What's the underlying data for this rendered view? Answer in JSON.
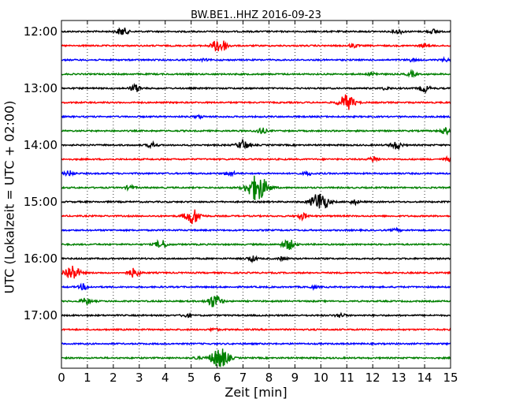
{
  "chart_data": {
    "type": "line",
    "title": "BW.BE1..HHZ 2016-09-23",
    "xlabel": "Zeit  [min]",
    "ylabel": "UTC (Lokalzeit = UTC + 02:00)",
    "xlim": [
      0,
      15
    ],
    "x_ticks": [
      0,
      1,
      2,
      3,
      4,
      5,
      6,
      7,
      8,
      9,
      10,
      11,
      12,
      13,
      14,
      15
    ],
    "y_tick_labels": [
      "12:00",
      "13:00",
      "14:00",
      "15:00",
      "16:00",
      "17:00"
    ],
    "grid": "vertical dotted",
    "colors": [
      "#000000",
      "#ff0000",
      "#0000ff",
      "#008000"
    ],
    "traces": [
      {
        "start": "12:00",
        "color": "#000000",
        "events": [
          [
            2.35,
            0.45
          ],
          [
            13.0,
            0.25
          ],
          [
            14.35,
            0.25
          ]
        ]
      },
      {
        "start": "12:15",
        "color": "#ff0000",
        "events": [
          [
            6.1,
            0.85
          ],
          [
            11.25,
            0.2
          ],
          [
            14.0,
            0.2
          ]
        ]
      },
      {
        "start": "12:30",
        "color": "#0000ff",
        "events": [
          [
            5.5,
            0.1
          ],
          [
            13.5,
            0.15
          ],
          [
            14.8,
            0.15
          ]
        ]
      },
      {
        "start": "12:45",
        "color": "#008000",
        "events": [
          [
            12.0,
            0.2
          ],
          [
            13.5,
            0.3
          ]
        ]
      },
      {
        "start": "13:00",
        "color": "#000000",
        "events": [
          [
            2.85,
            0.4
          ],
          [
            12.5,
            0.15
          ],
          [
            14.0,
            0.4
          ]
        ]
      },
      {
        "start": "13:15",
        "color": "#ff0000",
        "events": [
          [
            11.0,
            0.9
          ]
        ]
      },
      {
        "start": "13:30",
        "color": "#0000ff",
        "events": [
          [
            5.3,
            0.15
          ]
        ]
      },
      {
        "start": "13:45",
        "color": "#008000",
        "events": [
          [
            7.7,
            0.35
          ],
          [
            14.8,
            0.35
          ]
        ]
      },
      {
        "start": "14:00",
        "color": "#000000",
        "events": [
          [
            3.5,
            0.3
          ],
          [
            7.0,
            0.55
          ],
          [
            12.9,
            0.45
          ]
        ]
      },
      {
        "start": "14:15",
        "color": "#ff0000",
        "events": [
          [
            12.05,
            0.3
          ],
          [
            14.9,
            0.2
          ]
        ]
      },
      {
        "start": "14:30",
        "color": "#0000ff",
        "events": [
          [
            0.3,
            0.3
          ],
          [
            6.5,
            0.3
          ],
          [
            9.5,
            0.2
          ]
        ]
      },
      {
        "start": "14:45",
        "color": "#008000",
        "events": [
          [
            2.65,
            0.25
          ],
          [
            7.55,
            1.5
          ]
        ]
      },
      {
        "start": "15:00",
        "color": "#000000",
        "events": [
          [
            9.95,
            1.1
          ],
          [
            11.3,
            0.25
          ]
        ]
      },
      {
        "start": "15:15",
        "color": "#ff0000",
        "events": [
          [
            5.05,
            0.9
          ],
          [
            9.3,
            0.35
          ]
        ]
      },
      {
        "start": "15:30",
        "color": "#0000ff",
        "events": [
          [
            12.9,
            0.15
          ]
        ]
      },
      {
        "start": "15:45",
        "color": "#008000",
        "events": [
          [
            3.85,
            0.5
          ],
          [
            8.75,
            0.6
          ]
        ]
      },
      {
        "start": "16:00",
        "color": "#000000",
        "events": [
          [
            7.35,
            0.3
          ],
          [
            8.55,
            0.2
          ]
        ]
      },
      {
        "start": "16:15",
        "color": "#ff0000",
        "events": [
          [
            0.4,
            0.9
          ],
          [
            2.8,
            0.5
          ]
        ]
      },
      {
        "start": "16:30",
        "color": "#0000ff",
        "events": [
          [
            0.85,
            0.3
          ],
          [
            9.7,
            0.15
          ]
        ]
      },
      {
        "start": "16:45",
        "color": "#008000",
        "events": [
          [
            0.95,
            0.35
          ],
          [
            5.9,
            0.75
          ]
        ]
      },
      {
        "start": "17:00",
        "color": "#000000",
        "events": [
          [
            4.8,
            0.2
          ],
          [
            10.75,
            0.25
          ]
        ]
      },
      {
        "start": "17:15",
        "color": "#ff0000",
        "events": [
          [
            5.9,
            0.15
          ]
        ]
      },
      {
        "start": "17:30",
        "color": "#0000ff",
        "events": []
      },
      {
        "start": "17:45",
        "color": "#008000",
        "events": [
          [
            6.1,
            1.2
          ],
          [
            5.2,
            0.15
          ]
        ]
      }
    ]
  }
}
